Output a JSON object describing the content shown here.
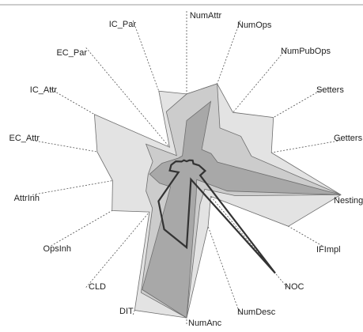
{
  "chart_data": {
    "type": "radar",
    "title": "",
    "axes": [
      "NumAttr",
      "NumOps",
      "NumPubOps",
      "Setters",
      "Getters",
      "Nesting",
      "IFImpl",
      "NOC",
      "NumDesc",
      "NumAnc",
      "DIT",
      "CLD",
      "OpsInh",
      "AttrInh",
      "EC_Attr",
      "IC_Attr",
      "EC_Par",
      "IC_Par"
    ],
    "range": [
      0,
      1
    ],
    "grid": false,
    "legend": "none",
    "series": [
      {
        "values": [
          0.47,
          0.57,
          0.46,
          0.64,
          0.55,
          1.0,
          0.75,
          0.24,
          0.4,
          0.96,
          0.97,
          0.37,
          0.55,
          0.48,
          0.58,
          0.68,
          0.17,
          0.52
        ],
        "fill": "#e3e3e3",
        "opacity": 1.0
      },
      {
        "values": [
          0.47,
          0.57,
          0.33,
          0.4,
          0.42,
          1.0,
          0.36,
          0.18,
          0.25,
          0.96,
          0.85,
          0.34,
          0.3,
          0.25,
          0.22,
          0.3,
          0.1,
          0.38
        ],
        "fill": "#c2c2c2",
        "opacity": 0.7
      },
      {
        "values": [
          0.3,
          0.45,
          0.15,
          0.18,
          0.2,
          1.0,
          0.3,
          0.1,
          0.18,
          0.96,
          0.83,
          0.16,
          0.2,
          0.24,
          0.16,
          0.1,
          0.08,
          0.08
        ],
        "fill": "#9c9c9c",
        "opacity": 0.75
      },
      {
        "values": [
          0.04,
          0.05,
          0.06,
          0.05,
          0.08,
          0.12,
          0.1,
          0.88,
          0.08,
          0.51,
          0.42,
          0.28,
          0.06,
          0.11,
          0.1,
          0.08,
          0.05,
          0.05
        ],
        "fill": "none",
        "stroke": "#333333",
        "stroke_width": 2.2
      }
    ]
  }
}
